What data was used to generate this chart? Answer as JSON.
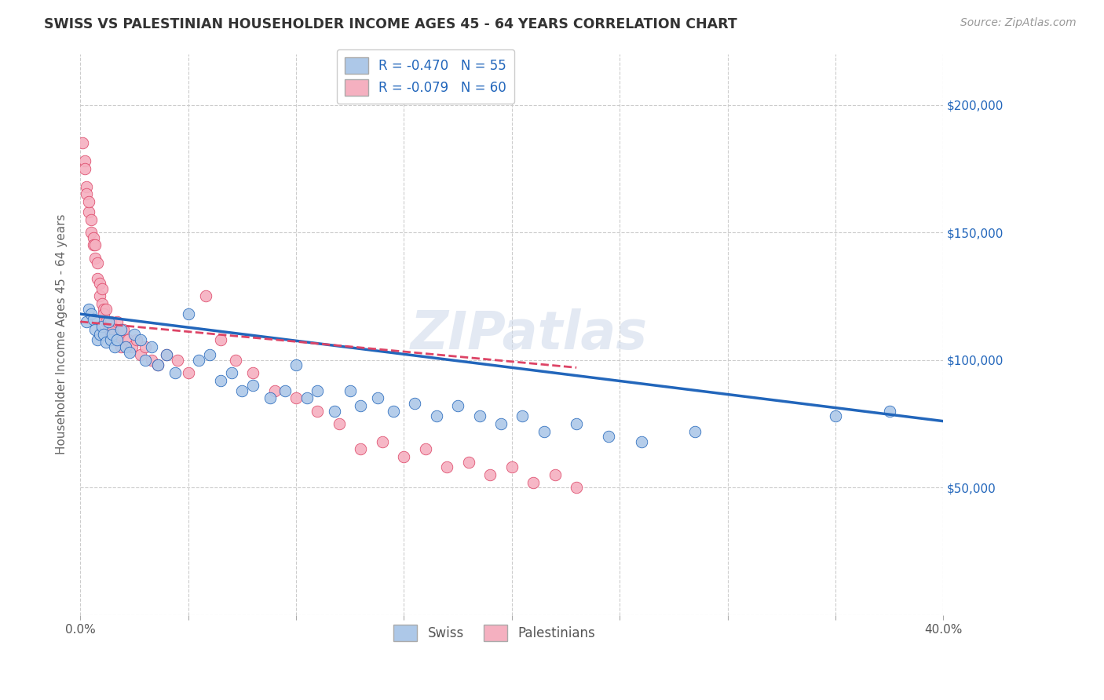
{
  "title": "SWISS VS PALESTINIAN HOUSEHOLDER INCOME AGES 45 - 64 YEARS CORRELATION CHART",
  "source": "Source: ZipAtlas.com",
  "ylabel": "Householder Income Ages 45 - 64 years",
  "xlim": [
    0.0,
    0.4
  ],
  "ylim": [
    0,
    220000
  ],
  "yticks": [
    0,
    50000,
    100000,
    150000,
    200000
  ],
  "ytick_labels": [
    "",
    "$50,000",
    "$100,000",
    "$150,000",
    "$200,000"
  ],
  "xticks": [
    0.0,
    0.05,
    0.1,
    0.15,
    0.2,
    0.25,
    0.3,
    0.35,
    0.4
  ],
  "swiss_color": "#adc8e8",
  "palestinian_color": "#f5b0c0",
  "swiss_line_color": "#2266bb",
  "palestinian_line_color": "#dd4466",
  "swiss_R": -0.47,
  "swiss_N": 55,
  "palestinian_R": -0.079,
  "palestinian_N": 60,
  "watermark": "ZIPatlas",
  "swiss_x": [
    0.003,
    0.004,
    0.005,
    0.006,
    0.007,
    0.008,
    0.009,
    0.01,
    0.011,
    0.012,
    0.013,
    0.014,
    0.015,
    0.016,
    0.017,
    0.019,
    0.021,
    0.023,
    0.025,
    0.028,
    0.03,
    0.033,
    0.036,
    0.04,
    0.044,
    0.05,
    0.055,
    0.06,
    0.065,
    0.07,
    0.075,
    0.08,
    0.088,
    0.095,
    0.1,
    0.105,
    0.11,
    0.118,
    0.125,
    0.13,
    0.138,
    0.145,
    0.155,
    0.165,
    0.175,
    0.185,
    0.195,
    0.205,
    0.215,
    0.23,
    0.245,
    0.26,
    0.285,
    0.35,
    0.375
  ],
  "swiss_y": [
    115000,
    120000,
    118000,
    116000,
    112000,
    108000,
    110000,
    113000,
    110000,
    107000,
    115000,
    108000,
    110000,
    105000,
    108000,
    112000,
    105000,
    103000,
    110000,
    108000,
    100000,
    105000,
    98000,
    102000,
    95000,
    118000,
    100000,
    102000,
    92000,
    95000,
    88000,
    90000,
    85000,
    88000,
    98000,
    85000,
    88000,
    80000,
    88000,
    82000,
    85000,
    80000,
    83000,
    78000,
    82000,
    78000,
    75000,
    78000,
    72000,
    75000,
    70000,
    68000,
    72000,
    78000,
    80000
  ],
  "pal_x": [
    0.001,
    0.002,
    0.002,
    0.003,
    0.003,
    0.004,
    0.004,
    0.005,
    0.005,
    0.006,
    0.006,
    0.007,
    0.007,
    0.008,
    0.008,
    0.009,
    0.009,
    0.01,
    0.01,
    0.011,
    0.011,
    0.012,
    0.012,
    0.013,
    0.014,
    0.015,
    0.016,
    0.017,
    0.018,
    0.019,
    0.02,
    0.022,
    0.024,
    0.026,
    0.028,
    0.03,
    0.033,
    0.036,
    0.04,
    0.045,
    0.05,
    0.058,
    0.065,
    0.072,
    0.08,
    0.09,
    0.1,
    0.11,
    0.12,
    0.13,
    0.14,
    0.15,
    0.16,
    0.17,
    0.18,
    0.19,
    0.2,
    0.21,
    0.22,
    0.23
  ],
  "pal_y": [
    185000,
    178000,
    175000,
    168000,
    165000,
    158000,
    162000,
    150000,
    155000,
    148000,
    145000,
    140000,
    145000,
    138000,
    132000,
    130000,
    125000,
    128000,
    122000,
    120000,
    118000,
    115000,
    120000,
    112000,
    115000,
    112000,
    108000,
    115000,
    110000,
    105000,
    112000,
    108000,
    105000,
    108000,
    102000,
    105000,
    100000,
    98000,
    102000,
    100000,
    95000,
    125000,
    108000,
    100000,
    95000,
    88000,
    85000,
    80000,
    75000,
    65000,
    68000,
    62000,
    65000,
    58000,
    60000,
    55000,
    58000,
    52000,
    55000,
    50000
  ]
}
